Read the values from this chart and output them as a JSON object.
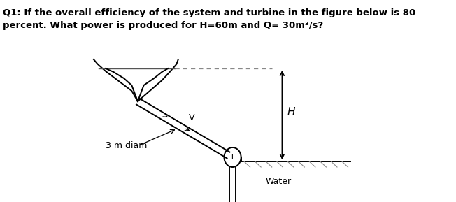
{
  "title_line1": "Q1: If the overall efficiency of the system and turbine in the figure below is 80",
  "title_line2": "percent. What power is produced for H=60m and Q= 30m³/s?",
  "bg_color": "#ffffff",
  "text_color": "#000000",
  "line_color": "#000000",
  "label_3m": "3 m diam",
  "label_V": "V",
  "label_H": "H",
  "label_T": "T",
  "label_Water": "Water",
  "fig_width": 6.52,
  "fig_height": 2.89,
  "dpi": 100
}
